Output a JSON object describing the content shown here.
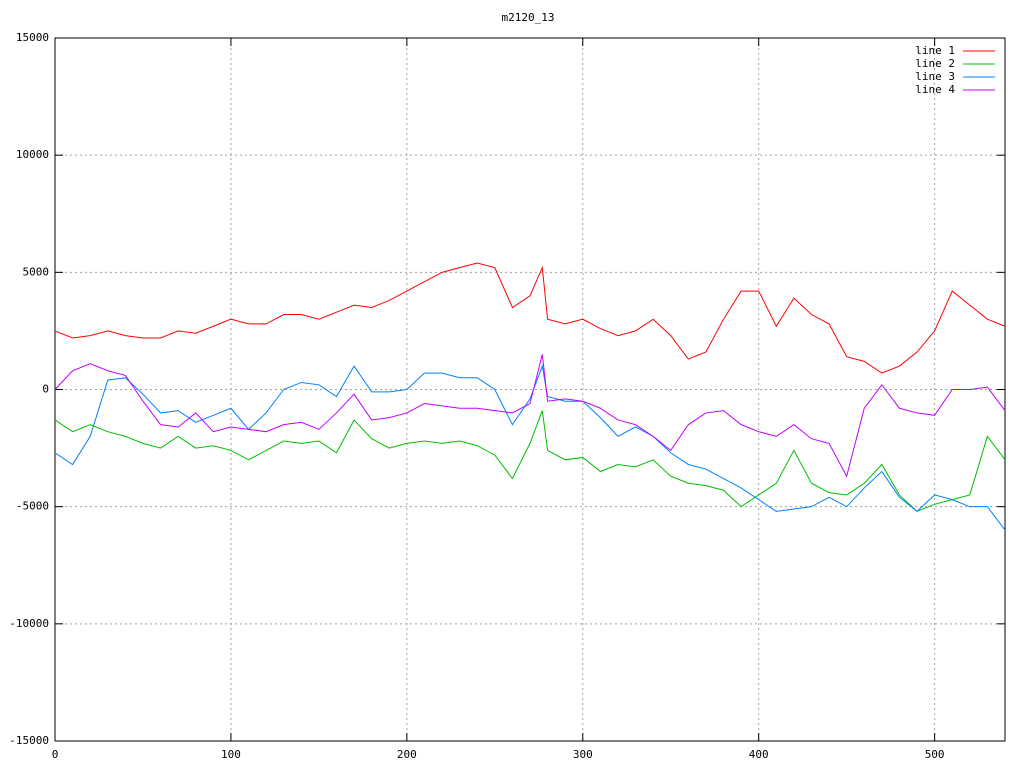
{
  "chart_data": {
    "type": "line",
    "title": "m2120_13",
    "x": [
      0,
      10,
      20,
      30,
      40,
      50,
      60,
      70,
      80,
      90,
      100,
      110,
      120,
      130,
      140,
      150,
      160,
      170,
      180,
      190,
      200,
      210,
      220,
      230,
      240,
      250,
      260,
      270,
      277,
      280,
      290,
      300,
      310,
      320,
      330,
      340,
      350,
      360,
      370,
      380,
      390,
      400,
      410,
      420,
      430,
      440,
      450,
      460,
      470,
      480,
      490,
      500,
      510,
      520,
      530,
      540
    ],
    "series": [
      {
        "name": "line 1",
        "color": "#ff0000",
        "values": [
          2500,
          2200,
          2300,
          2500,
          2300,
          2200,
          2200,
          2500,
          2400,
          2700,
          3000,
          2800,
          2800,
          3200,
          3200,
          3000,
          3300,
          3600,
          3500,
          3800,
          4200,
          4600,
          5000,
          5200,
          5400,
          5200,
          3500,
          4000,
          5200,
          3000,
          2800,
          3000,
          2600,
          2300,
          2500,
          3000,
          2300,
          1300,
          1600,
          3000,
          4200,
          4200,
          2700,
          3900,
          3200,
          2800,
          1400,
          1200,
          700,
          1000,
          1600,
          2500,
          4200,
          3600,
          3000,
          2700
        ]
      },
      {
        "name": "line 2",
        "color": "#00c000",
        "values": [
          -1300,
          -1800,
          -1500,
          -1800,
          -2000,
          -2300,
          -2500,
          -2000,
          -2500,
          -2400,
          -2600,
          -3000,
          -2600,
          -2200,
          -2300,
          -2200,
          -2700,
          -1300,
          -2100,
          -2500,
          -2300,
          -2200,
          -2300,
          -2200,
          -2400,
          -2800,
          -3800,
          -2300,
          -900,
          -2600,
          -3000,
          -2900,
          -3500,
          -3200,
          -3300,
          -3000,
          -3700,
          -4000,
          -4100,
          -4300,
          -5000,
          -4500,
          -4000,
          -2600,
          -4000,
          -4400,
          -4500,
          -4000,
          -3200,
          -4500,
          -5200,
          -4900,
          -4700,
          -4500,
          -2000,
          -3000
        ]
      },
      {
        "name": "line 3",
        "color": "#0080ff",
        "values": [
          -2700,
          -3200,
          -2000,
          400,
          500,
          -200,
          -1000,
          -900,
          -1400,
          -1100,
          -800,
          -1700,
          -1000,
          0,
          300,
          200,
          -300,
          1000,
          -100,
          -100,
          0,
          700,
          700,
          500,
          500,
          0,
          -1500,
          -400,
          1000,
          -300,
          -500,
          -500,
          -1200,
          -2000,
          -1600,
          -2000,
          -2700,
          -3200,
          -3400,
          -3800,
          -4200,
          -4700,
          -5200,
          -5100,
          -5000,
          -4600,
          -5000,
          -4200,
          -3500,
          -4600,
          -5200,
          -4500,
          -4700,
          -5000,
          -5000,
          -6000
        ]
      },
      {
        "name": "line 4",
        "color": "#c000ff",
        "values": [
          0,
          800,
          1100,
          800,
          600,
          -500,
          -1500,
          -1600,
          -1000,
          -1800,
          -1600,
          -1700,
          -1800,
          -1500,
          -1400,
          -1700,
          -1000,
          -200,
          -1300,
          -1200,
          -1000,
          -600,
          -700,
          -800,
          -800,
          -900,
          -1000,
          -600,
          1500,
          -500,
          -400,
          -500,
          -800,
          -1300,
          -1500,
          -2000,
          -2600,
          -1500,
          -1000,
          -900,
          -1500,
          -1800,
          -2000,
          -1500,
          -2100,
          -2300,
          -3700,
          -800,
          200,
          -800,
          -1000,
          -1100,
          0,
          0,
          100,
          -900
        ]
      }
    ],
    "xlim": [
      0,
      540
    ],
    "xticks": [
      0,
      100,
      200,
      300,
      400,
      500
    ],
    "ylim": [
      -15000,
      15000
    ],
    "yticks": [
      -15000,
      -10000,
      -5000,
      0,
      5000,
      10000,
      15000
    ],
    "grid": true,
    "legend": "top-right"
  }
}
